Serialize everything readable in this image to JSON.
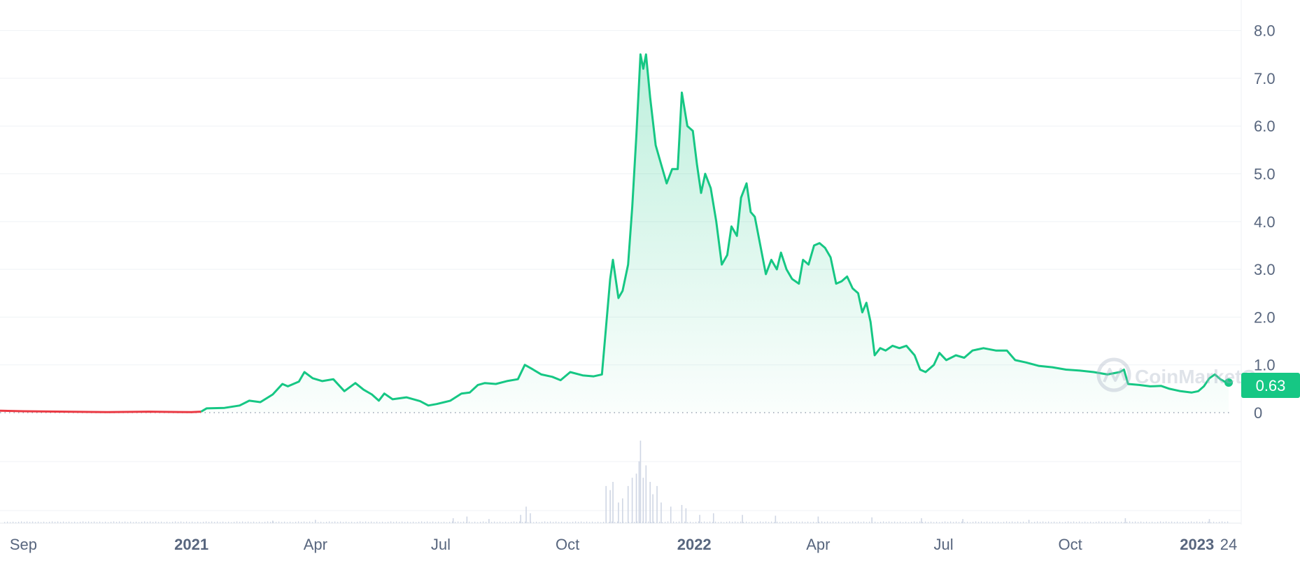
{
  "chart_data": {
    "type": "area",
    "title": "",
    "xlabel": "",
    "ylabel": "",
    "y_ticks": [
      "0",
      "1.0",
      "2.0",
      "3.0",
      "4.0",
      "5.0",
      "6.0",
      "7.0",
      "8.0"
    ],
    "y_tick_values": [
      0,
      1,
      2,
      3,
      4,
      5,
      6,
      7,
      8
    ],
    "ylim": [
      0,
      8.2
    ],
    "x_ticks": [
      {
        "label": "Sep",
        "date": "2020-09-01",
        "bold": false
      },
      {
        "label": "2021",
        "date": "2021-01-01",
        "bold": true
      },
      {
        "label": "Apr",
        "date": "2021-04-01",
        "bold": false
      },
      {
        "label": "Jul",
        "date": "2021-07-01",
        "bold": false
      },
      {
        "label": "Oct",
        "date": "2021-10-01",
        "bold": false
      },
      {
        "label": "2022",
        "date": "2022-01-01",
        "bold": true
      },
      {
        "label": "Apr",
        "date": "2022-04-01",
        "bold": false
      },
      {
        "label": "Jul",
        "date": "2022-07-01",
        "bold": false
      },
      {
        "label": "Oct",
        "date": "2022-10-01",
        "bold": false
      },
      {
        "label": "2023",
        "date": "2023-01-01",
        "bold": true
      },
      {
        "label": "24",
        "date": "2023-01-24",
        "bold": false
      }
    ],
    "xlim": [
      "2020-08-15",
      "2023-01-25"
    ],
    "grid": true,
    "current_price_label": "0.63",
    "baseline_value": 0,
    "colors": {
      "up": "#16c784",
      "down": "#ea3943",
      "grid": "#eff2f5",
      "axis_text": "#58667e",
      "volume": "#cfd6e4"
    },
    "series": [
      {
        "color": "#16c784",
        "points": [
          [
            "2020-08-15",
            0.04
          ],
          [
            "2020-09-01",
            0.03
          ],
          [
            "2020-10-01",
            0.02
          ],
          [
            "2020-11-01",
            0.01
          ],
          [
            "2020-12-01",
            0.02
          ],
          [
            "2021-01-01",
            0.01
          ],
          [
            "2021-01-08",
            0.02
          ],
          [
            "2021-01-12",
            0.09
          ],
          [
            "2021-01-25",
            0.1
          ],
          [
            "2021-02-05",
            0.15
          ],
          [
            "2021-02-12",
            0.25
          ],
          [
            "2021-02-20",
            0.22
          ],
          [
            "2021-03-01",
            0.38
          ],
          [
            "2021-03-08",
            0.6
          ],
          [
            "2021-03-12",
            0.55
          ],
          [
            "2021-03-20",
            0.65
          ],
          [
            "2021-03-24",
            0.85
          ],
          [
            "2021-03-30",
            0.72
          ],
          [
            "2021-04-06",
            0.66
          ],
          [
            "2021-04-14",
            0.7
          ],
          [
            "2021-04-22",
            0.45
          ],
          [
            "2021-04-30",
            0.62
          ],
          [
            "2021-05-06",
            0.48
          ],
          [
            "2021-05-12",
            0.38
          ],
          [
            "2021-05-17",
            0.25
          ],
          [
            "2021-05-21",
            0.4
          ],
          [
            "2021-05-27",
            0.28
          ],
          [
            "2021-06-06",
            0.32
          ],
          [
            "2021-06-16",
            0.24
          ],
          [
            "2021-06-22",
            0.15
          ],
          [
            "2021-06-28",
            0.18
          ],
          [
            "2021-07-08",
            0.25
          ],
          [
            "2021-07-16",
            0.4
          ],
          [
            "2021-07-22",
            0.42
          ],
          [
            "2021-07-28",
            0.58
          ],
          [
            "2021-08-02",
            0.62
          ],
          [
            "2021-08-10",
            0.6
          ],
          [
            "2021-08-18",
            0.66
          ],
          [
            "2021-08-26",
            0.7
          ],
          [
            "2021-08-31",
            1.0
          ],
          [
            "2021-09-05",
            0.92
          ],
          [
            "2021-09-12",
            0.8
          ],
          [
            "2021-09-20",
            0.75
          ],
          [
            "2021-09-26",
            0.68
          ],
          [
            "2021-10-03",
            0.85
          ],
          [
            "2021-10-12",
            0.78
          ],
          [
            "2021-10-20",
            0.76
          ],
          [
            "2021-10-26",
            0.8
          ],
          [
            "2021-10-29",
            1.8
          ],
          [
            "2021-11-01",
            2.8
          ],
          [
            "2021-11-03",
            3.2
          ],
          [
            "2021-11-07",
            2.4
          ],
          [
            "2021-11-10",
            2.55
          ],
          [
            "2021-11-14",
            3.1
          ],
          [
            "2021-11-17",
            4.3
          ],
          [
            "2021-11-20",
            5.8
          ],
          [
            "2021-11-23",
            7.5
          ],
          [
            "2021-11-25",
            7.2
          ],
          [
            "2021-11-27",
            7.5
          ],
          [
            "2021-11-30",
            6.6
          ],
          [
            "2021-12-04",
            5.6
          ],
          [
            "2021-12-08",
            5.2
          ],
          [
            "2021-12-12",
            4.8
          ],
          [
            "2021-12-16",
            5.1
          ],
          [
            "2021-12-20",
            5.1
          ],
          [
            "2021-12-23",
            6.7
          ],
          [
            "2021-12-27",
            6.0
          ],
          [
            "2021-12-31",
            5.9
          ],
          [
            "2022-01-03",
            5.2
          ],
          [
            "2022-01-06",
            4.6
          ],
          [
            "2022-01-09",
            5.0
          ],
          [
            "2022-01-13",
            4.7
          ],
          [
            "2022-01-17",
            4.0
          ],
          [
            "2022-01-21",
            3.1
          ],
          [
            "2022-01-25",
            3.3
          ],
          [
            "2022-01-28",
            3.9
          ],
          [
            "2022-02-01",
            3.7
          ],
          [
            "2022-02-04",
            4.5
          ],
          [
            "2022-02-08",
            4.8
          ],
          [
            "2022-02-11",
            4.2
          ],
          [
            "2022-02-14",
            4.1
          ],
          [
            "2022-02-18",
            3.5
          ],
          [
            "2022-02-22",
            2.9
          ],
          [
            "2022-02-26",
            3.2
          ],
          [
            "2022-03-02",
            3.0
          ],
          [
            "2022-03-05",
            3.35
          ],
          [
            "2022-03-09",
            3.0
          ],
          [
            "2022-03-13",
            2.8
          ],
          [
            "2022-03-18",
            2.7
          ],
          [
            "2022-03-21",
            3.2
          ],
          [
            "2022-03-25",
            3.1
          ],
          [
            "2022-03-29",
            3.5
          ],
          [
            "2022-04-02",
            3.55
          ],
          [
            "2022-04-06",
            3.45
          ],
          [
            "2022-04-10",
            3.25
          ],
          [
            "2022-04-14",
            2.7
          ],
          [
            "2022-04-18",
            2.75
          ],
          [
            "2022-04-22",
            2.85
          ],
          [
            "2022-04-26",
            2.6
          ],
          [
            "2022-04-30",
            2.5
          ],
          [
            "2022-05-03",
            2.1
          ],
          [
            "2022-05-06",
            2.3
          ],
          [
            "2022-05-09",
            1.9
          ],
          [
            "2022-05-12",
            1.2
          ],
          [
            "2022-05-16",
            1.35
          ],
          [
            "2022-05-20",
            1.3
          ],
          [
            "2022-05-25",
            1.4
          ],
          [
            "2022-05-30",
            1.35
          ],
          [
            "2022-06-04",
            1.4
          ],
          [
            "2022-06-10",
            1.2
          ],
          [
            "2022-06-14",
            0.9
          ],
          [
            "2022-06-18",
            0.85
          ],
          [
            "2022-06-24",
            1.0
          ],
          [
            "2022-06-28",
            1.25
          ],
          [
            "2022-07-03",
            1.1
          ],
          [
            "2022-07-10",
            1.2
          ],
          [
            "2022-07-16",
            1.15
          ],
          [
            "2022-07-22",
            1.3
          ],
          [
            "2022-07-30",
            1.35
          ],
          [
            "2022-08-08",
            1.3
          ],
          [
            "2022-08-16",
            1.3
          ],
          [
            "2022-08-22",
            1.1
          ],
          [
            "2022-08-30",
            1.05
          ],
          [
            "2022-09-08",
            0.98
          ],
          [
            "2022-09-18",
            0.95
          ],
          [
            "2022-09-28",
            0.9
          ],
          [
            "2022-10-08",
            0.88
          ],
          [
            "2022-10-18",
            0.85
          ],
          [
            "2022-10-28",
            0.8
          ],
          [
            "2022-11-06",
            0.85
          ],
          [
            "2022-11-09",
            0.9
          ],
          [
            "2022-11-12",
            0.6
          ],
          [
            "2022-11-20",
            0.58
          ],
          [
            "2022-11-28",
            0.55
          ],
          [
            "2022-12-06",
            0.56
          ],
          [
            "2022-12-12",
            0.5
          ],
          [
            "2022-12-20",
            0.45
          ],
          [
            "2022-12-28",
            0.42
          ],
          [
            "2023-01-02",
            0.45
          ],
          [
            "2023-01-06",
            0.55
          ],
          [
            "2023-01-10",
            0.72
          ],
          [
            "2023-01-14",
            0.8
          ],
          [
            "2023-01-18",
            0.7
          ],
          [
            "2023-01-21",
            0.65
          ],
          [
            "2023-01-24",
            0.63
          ]
        ]
      }
    ],
    "down_segment_end": "2021-01-10",
    "volume": {
      "unit": "relative",
      "bars": [
        [
          "2021-03-01",
          0.03
        ],
        [
          "2021-04-01",
          0.04
        ],
        [
          "2021-07-10",
          0.06
        ],
        [
          "2021-07-20",
          0.08
        ],
        [
          "2021-08-05",
          0.05
        ],
        [
          "2021-08-28",
          0.1
        ],
        [
          "2021-09-01",
          0.2
        ],
        [
          "2021-09-04",
          0.12
        ],
        [
          "2021-10-29",
          0.45
        ],
        [
          "2021-11-01",
          0.4
        ],
        [
          "2021-11-03",
          0.5
        ],
        [
          "2021-11-07",
          0.25
        ],
        [
          "2021-11-10",
          0.3
        ],
        [
          "2021-11-14",
          0.45
        ],
        [
          "2021-11-17",
          0.55
        ],
        [
          "2021-11-20",
          0.6
        ],
        [
          "2021-11-22",
          0.75
        ],
        [
          "2021-11-23",
          1.0
        ],
        [
          "2021-11-25",
          0.55
        ],
        [
          "2021-11-27",
          0.7
        ],
        [
          "2021-11-30",
          0.5
        ],
        [
          "2021-12-02",
          0.35
        ],
        [
          "2021-12-05",
          0.45
        ],
        [
          "2021-12-08",
          0.25
        ],
        [
          "2021-12-15",
          0.2
        ],
        [
          "2021-12-23",
          0.22
        ],
        [
          "2021-12-26",
          0.18
        ],
        [
          "2022-01-05",
          0.1
        ],
        [
          "2022-01-15",
          0.12
        ],
        [
          "2022-02-05",
          0.1
        ],
        [
          "2022-03-01",
          0.09
        ],
        [
          "2022-04-01",
          0.08
        ],
        [
          "2022-05-10",
          0.07
        ],
        [
          "2022-06-15",
          0.06
        ],
        [
          "2022-07-15",
          0.05
        ],
        [
          "2022-09-01",
          0.04
        ],
        [
          "2022-11-10",
          0.06
        ],
        [
          "2023-01-10",
          0.05
        ]
      ],
      "background_level": 0.02
    },
    "watermark": "CoinMarketCap"
  }
}
